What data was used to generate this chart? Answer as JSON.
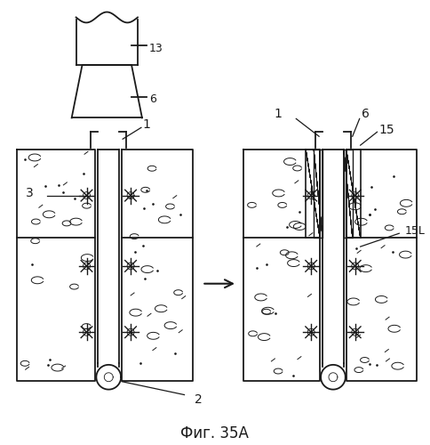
{
  "bg_color": "#ffffff",
  "line_color": "#1a1a1a",
  "title": "Фиг. 35A",
  "title_fontsize": 12
}
